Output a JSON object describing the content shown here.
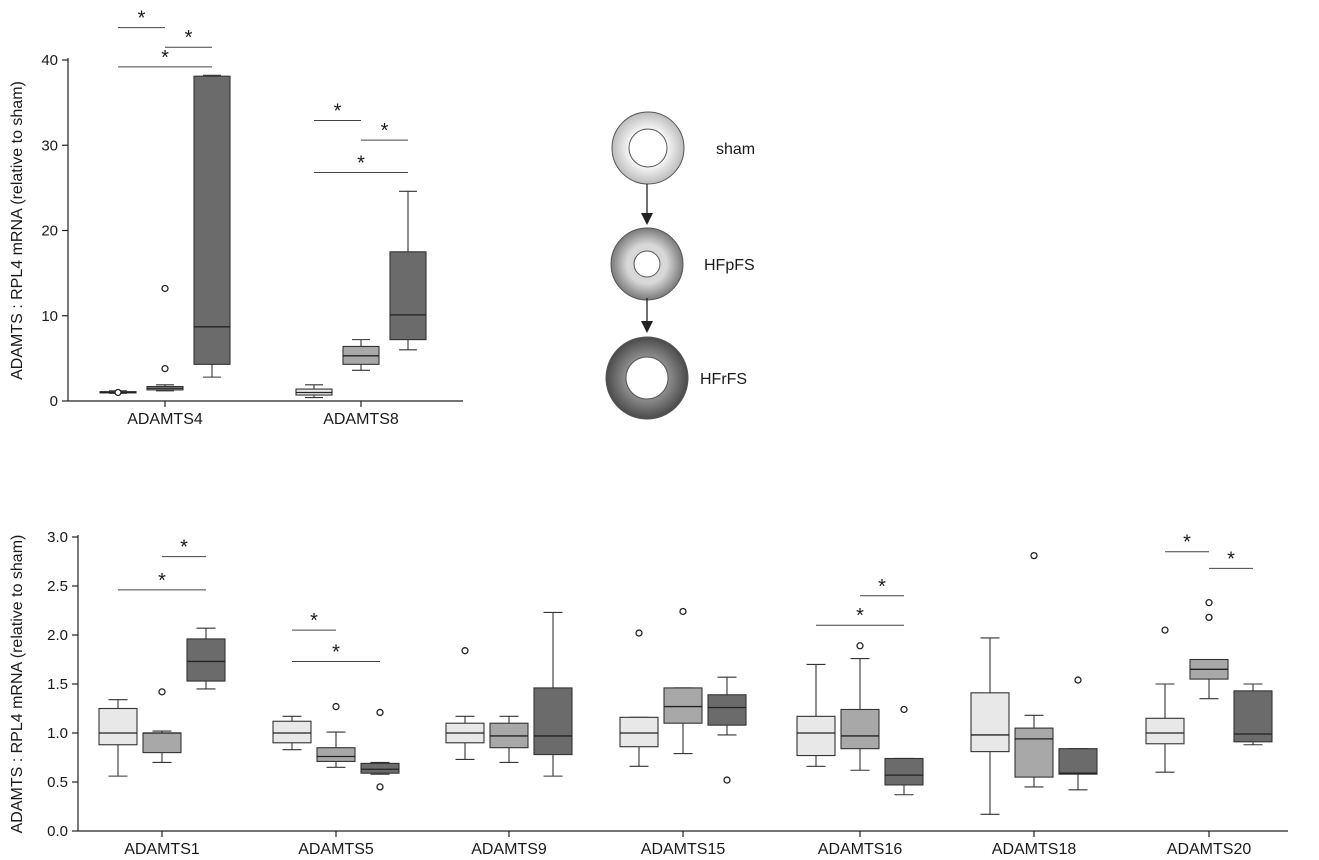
{
  "colors": {
    "sham": "#e8e8e8",
    "HFpFS": "#a8a8a8",
    "HFrFS": "#6b6b6b"
  },
  "legend": {
    "items": [
      {
        "label": "sham",
        "color": "#e8e8e8"
      },
      {
        "label": "HFpFS",
        "color": "#a8a8a8"
      },
      {
        "label": "HFrFS",
        "color": "#6b6b6b"
      }
    ]
  },
  "chart_data": [
    {
      "type": "box",
      "ylabel": "ADAMTS : RPL4 mRNA (relative to sham)",
      "ylim": [
        0,
        40
      ],
      "yticks": [
        0,
        10,
        20,
        30,
        40
      ],
      "categories": [
        "ADAMTS4",
        "ADAMTS8"
      ],
      "groups": [
        "sham",
        "HFpFS",
        "HFrFS"
      ],
      "boxes": [
        [
          {
            "min": 0.9,
            "q1": 0.95,
            "median": 1.0,
            "q3": 1.1,
            "max": 1.2,
            "outliers": [
              1.0
            ]
          },
          {
            "min": 1.2,
            "q1": 1.3,
            "median": 1.5,
            "q3": 1.7,
            "max": 1.9,
            "outliers": [
              3.8,
              13.2
            ]
          },
          {
            "min": 2.8,
            "q1": 4.3,
            "median": 8.7,
            "q3": 38.1,
            "max": 38.2,
            "outliers": []
          }
        ],
        [
          {
            "min": 0.4,
            "q1": 0.7,
            "median": 1.0,
            "q3": 1.4,
            "max": 1.9,
            "outliers": []
          },
          {
            "min": 3.6,
            "q1": 4.3,
            "median": 5.3,
            "q3": 6.4,
            "max": 7.2,
            "outliers": []
          },
          {
            "min": 6.0,
            "q1": 7.2,
            "median": 10.1,
            "q3": 17.5,
            "max": 24.6,
            "outliers": []
          }
        ]
      ],
      "significance": [
        {
          "category": 0,
          "from": 0,
          "to": 1,
          "y": 43.8,
          "label": "*"
        },
        {
          "category": 0,
          "from": 1,
          "to": 2,
          "y": 41.5,
          "label": "*"
        },
        {
          "category": 0,
          "from": 0,
          "to": 2,
          "y": 39.2,
          "label": "*"
        },
        {
          "category": 1,
          "from": 0,
          "to": 1,
          "y": 32.9,
          "label": "*"
        },
        {
          "category": 1,
          "from": 1,
          "to": 2,
          "y": 30.6,
          "label": "*"
        },
        {
          "category": 1,
          "from": 0,
          "to": 2,
          "y": 26.8,
          "label": "*"
        }
      ]
    },
    {
      "type": "box",
      "ylabel": "ADAMTS : RPL4 mRNA (relative to sham)",
      "ylim": [
        0,
        3.0
      ],
      "yticks": [
        "0.0",
        "0.5",
        "1.0",
        "1.5",
        "2.0",
        "2.5",
        "3.0"
      ],
      "categories": [
        "ADAMTS1",
        "ADAMTS5",
        "ADAMTS9",
        "ADAMTS15",
        "ADAMTS16",
        "ADAMTS18",
        "ADAMTS20"
      ],
      "groups": [
        "sham",
        "HFpFS",
        "HFrFS"
      ],
      "boxes": [
        [
          {
            "min": 0.56,
            "q1": 0.88,
            "median": 1.0,
            "q3": 1.25,
            "max": 1.34,
            "outliers": []
          },
          {
            "min": 0.7,
            "q1": 0.8,
            "median": 1.0,
            "q3": 1.0,
            "max": 1.02,
            "outliers": [
              1.42
            ]
          },
          {
            "min": 1.45,
            "q1": 1.53,
            "median": 1.73,
            "q3": 1.96,
            "max": 2.07,
            "outliers": []
          }
        ],
        [
          {
            "min": 0.83,
            "q1": 0.9,
            "median": 1.0,
            "q3": 1.12,
            "max": 1.17,
            "outliers": []
          },
          {
            "min": 0.65,
            "q1": 0.71,
            "median": 0.76,
            "q3": 0.85,
            "max": 1.01,
            "outliers": [
              1.27
            ]
          },
          {
            "min": 0.58,
            "q1": 0.59,
            "median": 0.63,
            "q3": 0.69,
            "max": 0.7,
            "outliers": [
              0.45,
              1.21
            ]
          }
        ],
        [
          {
            "min": 0.73,
            "q1": 0.9,
            "median": 1.0,
            "q3": 1.1,
            "max": 1.17,
            "outliers": [
              1.84
            ]
          },
          {
            "min": 0.7,
            "q1": 0.85,
            "median": 0.97,
            "q3": 1.1,
            "max": 1.17,
            "outliers": []
          },
          {
            "min": 0.56,
            "q1": 0.78,
            "median": 0.97,
            "q3": 1.46,
            "max": 2.23,
            "outliers": []
          }
        ],
        [
          {
            "min": 0.66,
            "q1": 0.86,
            "median": 1.0,
            "q3": 1.16,
            "max": 1.16,
            "outliers": [
              2.02
            ]
          },
          {
            "min": 0.79,
            "q1": 1.1,
            "median": 1.27,
            "q3": 1.46,
            "max": 1.46,
            "outliers": [
              2.24
            ]
          },
          {
            "min": 0.98,
            "q1": 1.08,
            "median": 1.26,
            "q3": 1.39,
            "max": 1.57,
            "outliers": [
              0.52
            ]
          }
        ],
        [
          {
            "min": 0.66,
            "q1": 0.77,
            "median": 1.0,
            "q3": 1.17,
            "max": 1.7,
            "outliers": []
          },
          {
            "min": 0.62,
            "q1": 0.84,
            "median": 0.97,
            "q3": 1.24,
            "max": 1.76,
            "outliers": [
              1.89
            ]
          },
          {
            "min": 0.37,
            "q1": 0.47,
            "median": 0.57,
            "q3": 0.74,
            "max": 0.74,
            "outliers": [
              1.24
            ]
          }
        ],
        [
          {
            "min": 0.17,
            "q1": 0.81,
            "median": 0.98,
            "q3": 1.41,
            "max": 1.97,
            "outliers": []
          },
          {
            "min": 0.45,
            "q1": 0.55,
            "median": 0.94,
            "q3": 1.05,
            "max": 1.18,
            "outliers": [
              2.81
            ]
          },
          {
            "min": 0.42,
            "q1": 0.58,
            "median": 0.59,
            "q3": 0.84,
            "max": 0.84,
            "outliers": [
              1.54
            ]
          }
        ],
        [
          {
            "min": 0.6,
            "q1": 0.89,
            "median": 1.0,
            "q3": 1.15,
            "max": 1.5,
            "outliers": [
              2.05
            ]
          },
          {
            "min": 1.35,
            "q1": 1.55,
            "median": 1.65,
            "q3": 1.75,
            "max": 1.75,
            "outliers": [
              2.18,
              2.33
            ]
          },
          {
            "min": 0.88,
            "q1": 0.91,
            "median": 0.99,
            "q3": 1.43,
            "max": 1.5,
            "outliers": []
          }
        ]
      ],
      "significance": [
        {
          "category": 0,
          "from": 1,
          "to": 2,
          "y": 2.8,
          "label": "*"
        },
        {
          "category": 0,
          "from": 0,
          "to": 2,
          "y": 2.46,
          "label": "*"
        },
        {
          "category": 1,
          "from": 0,
          "to": 1,
          "y": 2.05,
          "label": "*"
        },
        {
          "category": 1,
          "from": 0,
          "to": 2,
          "y": 1.73,
          "label": "*"
        },
        {
          "category": 4,
          "from": 1,
          "to": 2,
          "y": 2.4,
          "label": "*"
        },
        {
          "category": 4,
          "from": 0,
          "to": 2,
          "y": 2.1,
          "label": "*"
        },
        {
          "category": 6,
          "from": 0,
          "to": 1,
          "y": 2.85,
          "label": "*"
        },
        {
          "category": 6,
          "from": 1,
          "to": 2,
          "y": 2.68,
          "label": "*"
        }
      ]
    }
  ]
}
